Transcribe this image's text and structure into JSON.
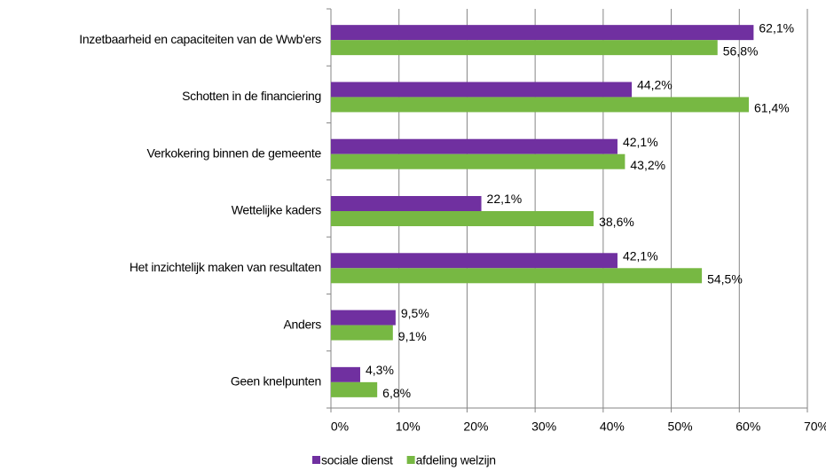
{
  "chart_data": {
    "type": "barh",
    "categories": [
      "Inzetbaarheid en capaciteiten van de Wwb'ers",
      "Schotten in de financiering",
      "Verkokering binnen de gemeente",
      "Wettelijke kaders",
      "Het inzichtelijk maken van resultaten",
      "Anders",
      "Geen knelpunten"
    ],
    "series": [
      {
        "name": "sociale dienst",
        "color": "#7030a0",
        "values": [
          62.1,
          44.2,
          42.1,
          22.1,
          42.1,
          9.5,
          4.3
        ],
        "value_labels": [
          "62,1%",
          "44,2%",
          "42,1%",
          "22,1%",
          "42,1%",
          "9,5%",
          "4,3%"
        ]
      },
      {
        "name": "afdeling welzijn",
        "color": "#77b843",
        "values": [
          56.8,
          61.4,
          43.2,
          38.6,
          54.5,
          9.1,
          6.8
        ],
        "value_labels": [
          "56,8%",
          "61,4%",
          "43,2%",
          "38,6%",
          "54,5%",
          "9,1%",
          "6,8%"
        ]
      }
    ],
    "xlim": [
      0,
      70
    ],
    "xticks": [
      {
        "value": 0,
        "label": "0%"
      },
      {
        "value": 10,
        "label": "10%"
      },
      {
        "value": 20,
        "label": "20%"
      },
      {
        "value": 30,
        "label": "30%"
      },
      {
        "value": 40,
        "label": "40%"
      },
      {
        "value": 50,
        "label": "50%"
      },
      {
        "value": 60,
        "label": "60%"
      },
      {
        "value": 70,
        "label": "70%"
      }
    ],
    "grid": true,
    "legend": "bottom"
  }
}
